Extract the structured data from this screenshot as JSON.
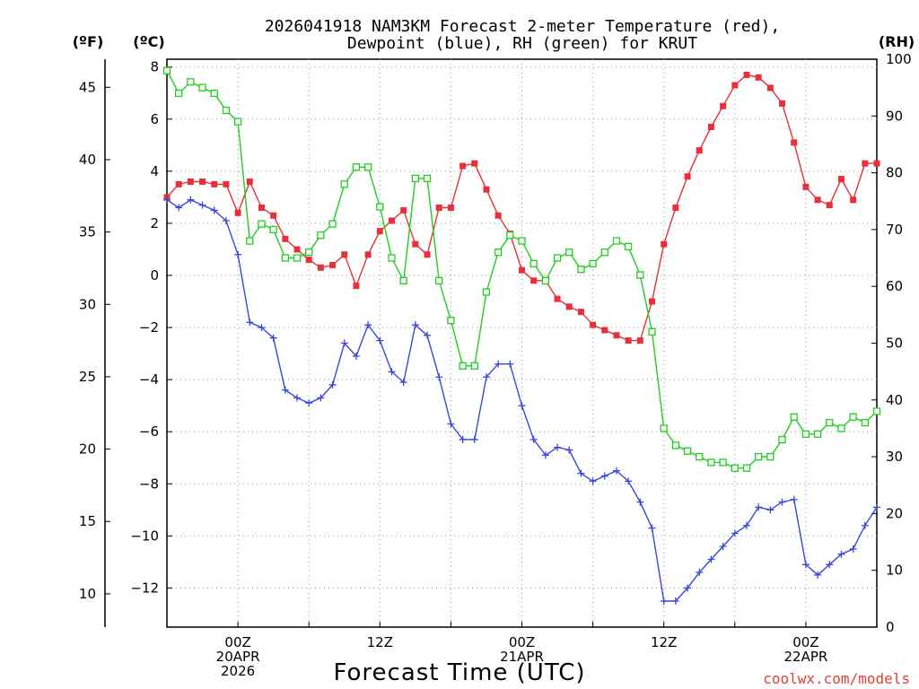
{
  "chart_data": {
    "type": "line",
    "title_line1": "2026041918 NAM3KM Forecast 2-meter Temperature (red),",
    "title_line2": "Dewpoint (blue), RH (green) for KRUT",
    "xlabel": "Forecast Time (UTC)",
    "credit": "coolwx.com/models",
    "units": {
      "fahrenheit": "(ºF)",
      "celsius": "(ºC)",
      "rh": "(RH)"
    },
    "x_range_hours": [
      -6,
      54
    ],
    "celsius_range": [
      -13.5,
      8.3
    ],
    "rh_range": [
      0,
      100
    ],
    "x_ticks": [
      {
        "hour": 0,
        "line1": "00Z",
        "line2": "20APR",
        "line3": "2026"
      },
      {
        "hour": 12,
        "line1": "12Z",
        "line2": "",
        "line3": ""
      },
      {
        "hour": 24,
        "line1": "00Z",
        "line2": "21APR",
        "line3": ""
      },
      {
        "hour": 36,
        "line1": "12Z",
        "line2": "",
        "line3": ""
      },
      {
        "hour": 48,
        "line1": "00Z",
        "line2": "22APR",
        "line3": ""
      }
    ],
    "celsius_ticks": [
      "8",
      "6",
      "4",
      "2",
      "0",
      "−2",
      "−4",
      "−6",
      "−8",
      "−10",
      "−12"
    ],
    "fahrenheit_ticks": [
      "45",
      "40",
      "35",
      "30",
      "25",
      "20",
      "15",
      "10"
    ],
    "rh_ticks": [
      "100",
      "90",
      "80",
      "70",
      "60",
      "50",
      "40",
      "30",
      "20",
      "10",
      "0"
    ],
    "series": [
      {
        "name": "2-meter Temperature",
        "unit": "C",
        "color": "#e8303a",
        "marker": "filled-square",
        "values": [
          3.0,
          3.5,
          3.6,
          3.6,
          3.5,
          3.5,
          2.4,
          3.6,
          2.6,
          2.3,
          1.4,
          1.0,
          0.6,
          0.3,
          0.4,
          0.8,
          -0.4,
          0.8,
          1.7,
          2.1,
          2.5,
          1.2,
          0.8,
          2.6,
          2.6,
          4.2,
          4.3,
          3.3,
          2.3,
          1.6,
          0.2,
          -0.2,
          -0.2,
          -0.9,
          -1.2,
          -1.4,
          -1.9,
          -2.1,
          -2.3,
          -2.5,
          -2.5,
          -1.0,
          1.2,
          2.6,
          3.8,
          4.8,
          5.7,
          6.5,
          7.3,
          7.7,
          7.6,
          7.2,
          6.6,
          5.1,
          3.4,
          2.9,
          2.7,
          3.7,
          2.9,
          4.3,
          4.3
        ]
      },
      {
        "name": "Dewpoint",
        "unit": "C",
        "color": "#3848d8",
        "marker": "plus",
        "values": [
          2.9,
          2.6,
          2.9,
          2.7,
          2.5,
          2.1,
          0.8,
          -1.8,
          -2.0,
          -2.4,
          -4.4,
          -4.7,
          -4.9,
          -4.7,
          -4.2,
          -2.6,
          -3.1,
          -1.9,
          -2.5,
          -3.7,
          -4.1,
          -1.9,
          -2.3,
          -3.9,
          -5.7,
          -6.3,
          -6.3,
          -3.9,
          -3.4,
          -3.4,
          -5.0,
          -6.3,
          -6.9,
          -6.6,
          -6.7,
          -7.6,
          -7.9,
          -7.7,
          -7.5,
          -7.9,
          -8.7,
          -9.7,
          -12.5,
          -12.5,
          -12.0,
          -11.4,
          -10.9,
          -10.4,
          -9.9,
          -9.6,
          -8.9,
          -9.0,
          -8.7,
          -8.6,
          -11.1,
          -11.5,
          -11.1,
          -10.7,
          -10.5,
          -9.6,
          -8.9
        ]
      },
      {
        "name": "RH",
        "unit": "%",
        "color": "#1fcf1f",
        "marker": "open-square",
        "values": [
          98,
          94,
          96,
          95,
          94,
          91,
          89,
          68,
          71,
          70,
          65,
          65,
          66,
          69,
          71,
          78,
          81,
          81,
          74,
          65,
          61,
          79,
          79,
          61,
          54,
          46,
          46,
          59,
          66,
          69,
          68,
          64,
          61,
          65,
          66,
          63,
          64,
          66,
          68,
          67,
          62,
          52,
          35,
          32,
          31,
          30,
          29,
          29,
          28,
          28,
          30,
          30,
          33,
          37,
          34,
          34,
          36,
          35,
          37,
          36,
          38
        ]
      }
    ]
  }
}
